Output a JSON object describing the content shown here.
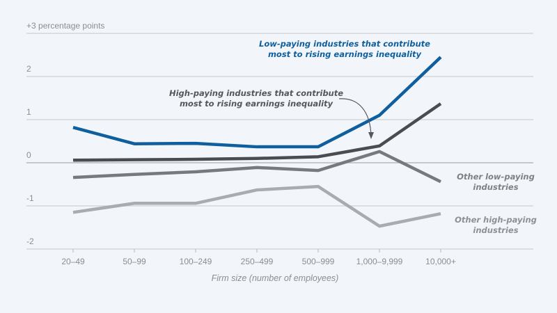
{
  "chart_data": {
    "type": "line",
    "title": "",
    "xlabel": "Firm size (number of employees)",
    "ylabel": "",
    "categories": [
      "20–49",
      "50–99",
      "100–249",
      "250–499",
      "500–999",
      "1,000–9,999",
      "10,000+"
    ],
    "ylim": [
      -2,
      3
    ],
    "yticks": [
      {
        "value": 3,
        "label": "+3 percentage points"
      },
      {
        "value": 2,
        "label": "2"
      },
      {
        "value": 1,
        "label": "1"
      },
      {
        "value": 0,
        "label": "0"
      },
      {
        "value": -1,
        "label": "-1"
      },
      {
        "value": -2,
        "label": "-2"
      }
    ],
    "grid": true,
    "series": [
      {
        "name": "Low-paying industries that contribute most to rising earnings inequality",
        "color": "#0f5f9e",
        "values": [
          0.82,
          0.44,
          0.45,
          0.37,
          0.37,
          1.1,
          2.45
        ]
      },
      {
        "name": "High-paying industries that contribute most to rising earnings inequality",
        "color": "#4a4c50",
        "values": [
          0.06,
          0.07,
          0.08,
          0.1,
          0.14,
          0.39,
          1.37
        ]
      },
      {
        "name": "Other low-paying industries",
        "color": "#77797d",
        "values": [
          -0.34,
          -0.27,
          -0.21,
          -0.11,
          -0.18,
          0.26,
          -0.44
        ]
      },
      {
        "name": "Other high-paying industries",
        "color": "#a9abae",
        "values": [
          -1.15,
          -0.94,
          -0.94,
          -0.63,
          -0.55,
          -1.47,
          -1.18
        ]
      }
    ],
    "annotations": [
      {
        "series": 0,
        "lines": [
          "Low-paying industries that contribute",
          "most to rising earnings inequality"
        ],
        "color": "#0f5f9e"
      },
      {
        "series": 1,
        "lines": [
          "High-paying industries that contribute",
          "most to rising earnings inequality"
        ],
        "color": "#55575b"
      },
      {
        "series": 2,
        "lines": [
          "Other low-paying",
          "industries"
        ],
        "color": "#7d8084"
      },
      {
        "series": 3,
        "lines": [
          "Other high-paying",
          "industries"
        ],
        "color": "#8d9094"
      }
    ],
    "legend": "inline-annotations"
  }
}
